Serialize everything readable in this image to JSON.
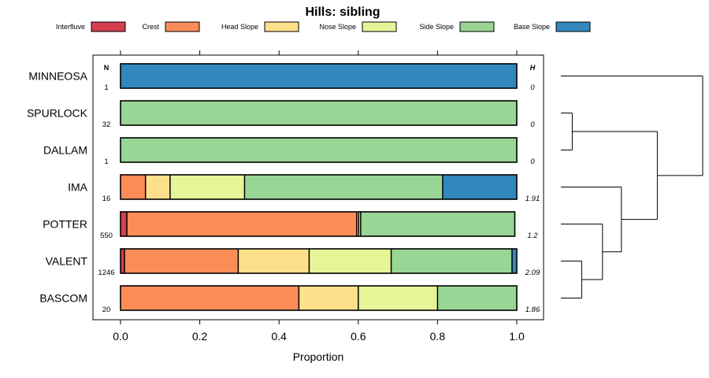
{
  "chart_data": {
    "type": "bar",
    "orientation": "horizontal",
    "stacked": true,
    "title": "Hills: sibling",
    "xlabel": "Proportion",
    "ylabel": "",
    "xlim": [
      -0.07,
      1.07
    ],
    "xticks": [
      0.0,
      0.2,
      0.4,
      0.6,
      0.8,
      1.0
    ],
    "xtick_labels": [
      "0.0",
      "0.2",
      "0.4",
      "0.6",
      "0.8",
      "1.0"
    ],
    "grid": false,
    "legend_position": "top",
    "n_header": "N",
    "h_header": "H",
    "legend": [
      {
        "name": "Interfluve",
        "color": "#D53E4F"
      },
      {
        "name": "Crest",
        "color": "#FC8D59"
      },
      {
        "name": "Head Slope",
        "color": "#FEE08B"
      },
      {
        "name": "Nose Slope",
        "color": "#E6F598"
      },
      {
        "name": "Side Slope",
        "color": "#99D594"
      },
      {
        "name": "Base Slope",
        "color": "#3288BD"
      }
    ],
    "rows": [
      {
        "label": "MINNEOSA",
        "n": "1",
        "h": "0",
        "values": [
          0,
          0,
          0,
          0,
          0,
          1.0
        ]
      },
      {
        "label": "SPURLOCK",
        "n": "32",
        "h": "0",
        "values": [
          0,
          0,
          0,
          0,
          1.0,
          0
        ]
      },
      {
        "label": "DALLAM",
        "n": "1",
        "h": "0",
        "values": [
          0,
          0,
          0,
          0,
          1.0,
          0
        ]
      },
      {
        "label": "IMA",
        "n": "16",
        "h": "1.91",
        "values": [
          0,
          0.063,
          0.062,
          0.188,
          0.5,
          0.187
        ]
      },
      {
        "label": "POTTER",
        "n": "550",
        "h": "1.2",
        "values": [
          0.016,
          0.58,
          0.005,
          0.005,
          0.389,
          0
        ]
      },
      {
        "label": "VALENT",
        "n": "1246",
        "h": "2.09",
        "values": [
          0.01,
          0.287,
          0.179,
          0.207,
          0.305,
          0.012
        ]
      },
      {
        "label": "BASCOM",
        "n": "20",
        "h": "1.86",
        "values": [
          0,
          0.45,
          0.15,
          0.2,
          0.2,
          0
        ]
      }
    ],
    "dendrogram": {
      "leaf_order": [
        "MINNEOSA",
        "SPURLOCK",
        "DALLAM",
        "IMA",
        "POTTER",
        "VALENT",
        "BASCOM"
      ],
      "merges": [
        {
          "a": "SPURLOCK",
          "b": "DALLAM",
          "height": 0.06
        },
        {
          "a": "VALENT",
          "b": "BASCOM",
          "height": 0.11
        },
        {
          "a": "POTTER",
          "b": "VALENT+BASCOM",
          "height": 0.22
        },
        {
          "a": "IMA",
          "b": "POTTER+VALENT+BASCOM",
          "height": 0.32
        },
        {
          "a": "SPURLOCK+DALLAM",
          "b": "IMA+POTTER+VALENT+BASCOM",
          "height": 0.51
        },
        {
          "a": "MINNEOSA",
          "b": "SPURLOCK+DALLAM+IMA+POTTER+VALENT+BASCOM",
          "height": 0.75
        }
      ]
    }
  }
}
